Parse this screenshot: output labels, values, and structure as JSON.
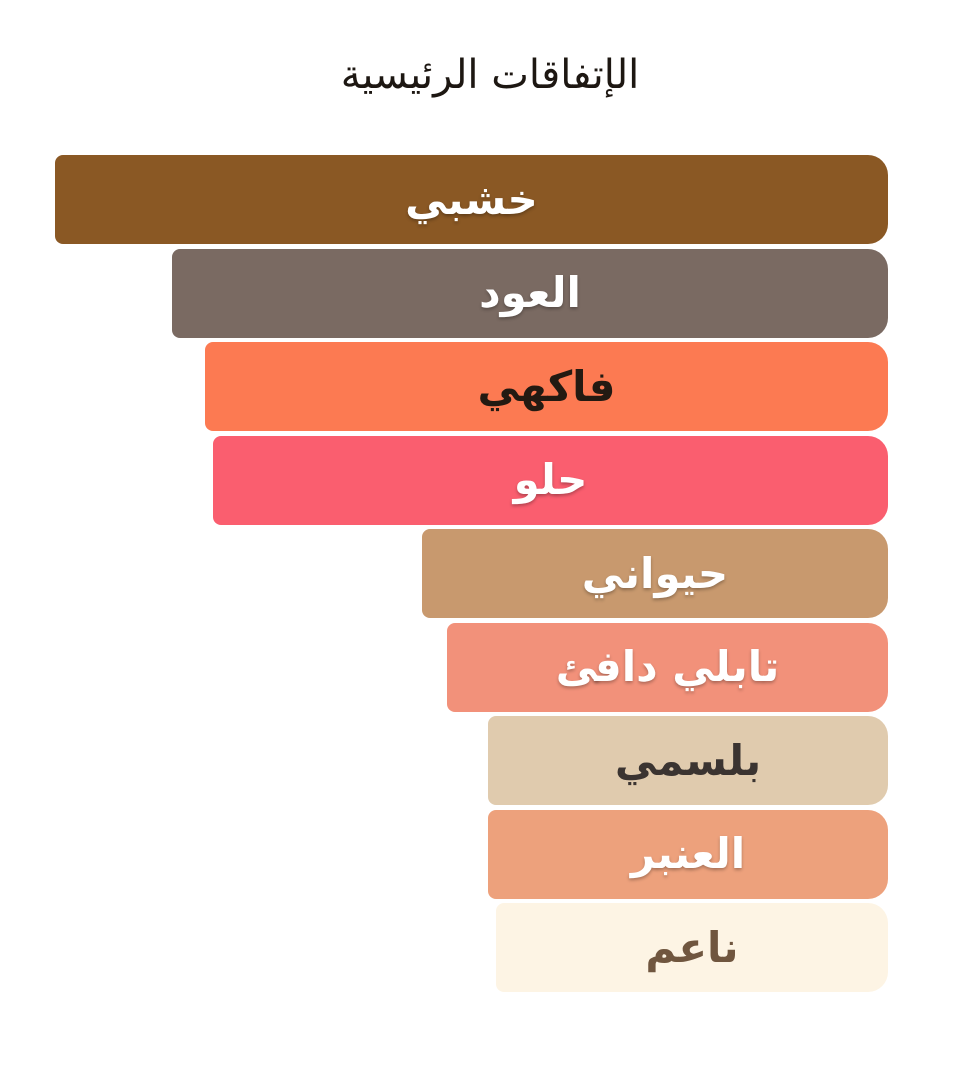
{
  "title": "الإتفاقات الرئيسية",
  "chart_data": {
    "type": "bar",
    "orientation": "horizontal-rtl",
    "title": "الإتفاقات الرئيسية",
    "legend": "none",
    "grid": false,
    "axis_labels": "none",
    "value_note": "bar lengths as percent of longest bar, anchored to right edge",
    "categories": [
      "خشبي",
      "العود",
      "فاكهي",
      "حلو",
      "حيواني",
      "تابلي دافئ",
      "بلسمي",
      "العنبر",
      "ناعم"
    ],
    "values": [
      100,
      86,
      82,
      81,
      56,
      53,
      48,
      48,
      47
    ],
    "bars": [
      {
        "label": "خشبي",
        "value_pct": 100,
        "color": "#8a5824",
        "text_color": "#ffffff"
      },
      {
        "label": "العود",
        "value_pct": 86,
        "color": "#7a6a62",
        "text_color": "#ffffff"
      },
      {
        "label": "فاكهي",
        "value_pct": 82,
        "color": "#fc7a52",
        "text_color": "#231a12"
      },
      {
        "label": "حلو",
        "value_pct": 81,
        "color": "#fa5e6f",
        "text_color": "#ffffff"
      },
      {
        "label": "حيواني",
        "value_pct": 56,
        "color": "#c8996e",
        "text_color": "#ffffff"
      },
      {
        "label": "تابلي دافئ",
        "value_pct": 53,
        "color": "#f2917a",
        "text_color": "#ffffff"
      },
      {
        "label": "بلسمي",
        "value_pct": 48,
        "color": "#e0cbae",
        "text_color": "#3b3431"
      },
      {
        "label": "العنبر",
        "value_pct": 48,
        "color": "#eda17c",
        "text_color": "#ffffff"
      },
      {
        "label": "ناعم",
        "value_pct": 47,
        "color": "#fdf4e4",
        "text_color": "#70563f"
      }
    ]
  }
}
